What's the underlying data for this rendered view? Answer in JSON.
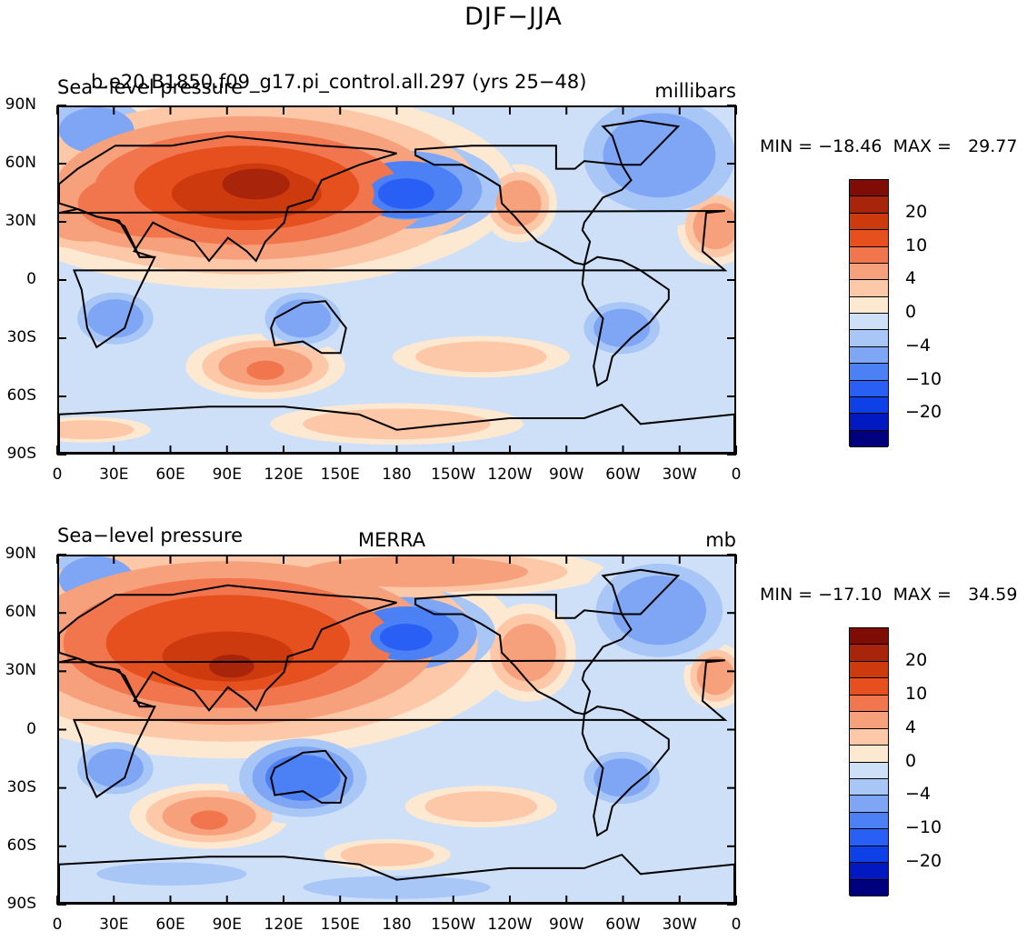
{
  "figure": {
    "title": "DJF−JJA"
  },
  "colors": {
    "levels": [
      "#00007f",
      "#0019c0",
      "#0d40e6",
      "#2a5ff5",
      "#4c80f5",
      "#7ea6f5",
      "#a8c6f6",
      "#cde0f8",
      "#e6f0fa",
      "#fde8d2",
      "#fcc8a7",
      "#f7a17c",
      "#f1764e",
      "#e6501f",
      "#cc3a0e",
      "#a8240a",
      "#7f0d05"
    ]
  },
  "chart_data": [
    {
      "type": "heatmap",
      "title": "b.e20.B1850.f09_g17.pi_control.all.297 (yrs 25−48)",
      "left_label": "Sea−level pressure",
      "units": "millibars",
      "min_max_text": "MIN = −18.46  MAX =   29.77",
      "ylim": [
        -90,
        90
      ],
      "xlim": [
        0,
        360
      ],
      "lat_ticks": [
        "90N",
        "60N",
        "30N",
        "0",
        "30S",
        "60S",
        "90S"
      ],
      "lon_ticks": [
        "0",
        "30E",
        "60E",
        "90E",
        "120E",
        "150E",
        "180",
        "150W",
        "120W",
        "90W",
        "60W",
        "30W",
        "0"
      ],
      "colorbar_labels": [
        "20",
        "10",
        "4",
        "0",
        "−4",
        "−10",
        "−20"
      ],
      "colorbar_levels": [
        -25,
        -20,
        -15,
        -10,
        -7,
        -4,
        -2,
        0,
        2,
        4,
        7,
        10,
        15,
        20,
        25
      ],
      "blobs": [
        {
          "lon": 100,
          "lat": 48,
          "rx": 60,
          "ry": 22,
          "v": 5
        },
        {
          "lon": 100,
          "lat": 45,
          "rx": 40,
          "ry": 14,
          "v": 6
        },
        {
          "lon": 105,
          "lat": 50,
          "rx": 18,
          "ry": 8,
          "v": 7
        },
        {
          "lon": 55,
          "lat": 40,
          "rx": 45,
          "ry": 18,
          "v": 4
        },
        {
          "lon": 15,
          "lat": 32,
          "rx": 25,
          "ry": 12,
          "v": 3
        },
        {
          "lon": 350,
          "lat": 28,
          "rx": 12,
          "ry": 12,
          "v": 3
        },
        {
          "lon": 245,
          "lat": 40,
          "rx": 12,
          "ry": 12,
          "v": 3
        },
        {
          "lon": 110,
          "lat": -45,
          "rx": 25,
          "ry": 10,
          "v": 3
        },
        {
          "lon": 110,
          "lat": -47,
          "rx": 10,
          "ry": 5,
          "v": 4
        },
        {
          "lon": 225,
          "lat": -40,
          "rx": 35,
          "ry": 8,
          "v": 2
        },
        {
          "lon": 180,
          "lat": -75,
          "rx": 50,
          "ry": 8,
          "v": 2
        },
        {
          "lon": 15,
          "lat": -78,
          "rx": 25,
          "ry": 5,
          "v": 2
        },
        {
          "lon": 185,
          "lat": 47,
          "rx": 30,
          "ry": 15,
          "v": -4
        },
        {
          "lon": 185,
          "lat": 45,
          "rx": 15,
          "ry": 8,
          "v": -5
        },
        {
          "lon": 320,
          "lat": 65,
          "rx": 30,
          "ry": 22,
          "v": -3
        },
        {
          "lon": 20,
          "lat": 78,
          "rx": 20,
          "ry": 12,
          "v": -3
        },
        {
          "lon": 30,
          "lat": -20,
          "rx": 15,
          "ry": 10,
          "v": -3
        },
        {
          "lon": 130,
          "lat": -20,
          "rx": 15,
          "ry": 10,
          "v": -3
        },
        {
          "lon": 300,
          "lat": -25,
          "rx": 15,
          "ry": 10,
          "v": -3
        },
        {
          "lon": 240,
          "lat": -60,
          "rx": 30,
          "ry": 5,
          "v": -1
        }
      ]
    },
    {
      "type": "heatmap",
      "title": "MERRA",
      "left_label": "Sea−level pressure",
      "units": "mb",
      "min_max_text": "MIN = −17.10  MAX =   34.59",
      "ylim": [
        -90,
        90
      ],
      "xlim": [
        0,
        360
      ],
      "lat_ticks": [
        "90N",
        "60N",
        "30N",
        "0",
        "30S",
        "60S",
        "90S"
      ],
      "lon_ticks": [
        "0",
        "30E",
        "60E",
        "90E",
        "120E",
        "150E",
        "180",
        "150W",
        "120W",
        "90W",
        "60W",
        "30W",
        "0"
      ],
      "colorbar_labels": [
        "20",
        "10",
        "4",
        "0",
        "−4",
        "−10",
        "−20"
      ],
      "colorbar_levels": [
        -25,
        -20,
        -15,
        -10,
        -7,
        -4,
        -2,
        0,
        2,
        4,
        7,
        10,
        15,
        20,
        25
      ],
      "blobs": [
        {
          "lon": 90,
          "lat": 45,
          "rx": 65,
          "ry": 25,
          "v": 5
        },
        {
          "lon": 90,
          "lat": 38,
          "rx": 35,
          "ry": 13,
          "v": 6
        },
        {
          "lon": 92,
          "lat": 33,
          "rx": 12,
          "ry": 6,
          "v": 7
        },
        {
          "lon": 190,
          "lat": 82,
          "rx": 60,
          "ry": 8,
          "v": 3
        },
        {
          "lon": 250,
          "lat": 40,
          "rx": 15,
          "ry": 15,
          "v": 3
        },
        {
          "lon": 350,
          "lat": 28,
          "rx": 10,
          "ry": 10,
          "v": 3
        },
        {
          "lon": 15,
          "lat": 33,
          "rx": 20,
          "ry": 12,
          "v": 3
        },
        {
          "lon": 80,
          "lat": -45,
          "rx": 25,
          "ry": 10,
          "v": 3
        },
        {
          "lon": 80,
          "lat": -47,
          "rx": 10,
          "ry": 5,
          "v": 4
        },
        {
          "lon": 225,
          "lat": -40,
          "rx": 30,
          "ry": 8,
          "v": 2
        },
        {
          "lon": 175,
          "lat": -65,
          "rx": 25,
          "ry": 6,
          "v": 2
        },
        {
          "lon": 185,
          "lat": 50,
          "rx": 28,
          "ry": 14,
          "v": -4
        },
        {
          "lon": 185,
          "lat": 48,
          "rx": 14,
          "ry": 7,
          "v": -5
        },
        {
          "lon": 320,
          "lat": 62,
          "rx": 25,
          "ry": 18,
          "v": -3
        },
        {
          "lon": 20,
          "lat": 78,
          "rx": 20,
          "ry": 12,
          "v": -3
        },
        {
          "lon": 30,
          "lat": -20,
          "rx": 15,
          "ry": 10,
          "v": -3
        },
        {
          "lon": 130,
          "lat": -25,
          "rx": 20,
          "ry": 12,
          "v": -4
        },
        {
          "lon": 300,
          "lat": -25,
          "rx": 15,
          "ry": 10,
          "v": -3
        },
        {
          "lon": 60,
          "lat": -75,
          "rx": 40,
          "ry": 6,
          "v": -2
        },
        {
          "lon": 180,
          "lat": -82,
          "rx": 50,
          "ry": 6,
          "v": -2
        }
      ]
    }
  ]
}
